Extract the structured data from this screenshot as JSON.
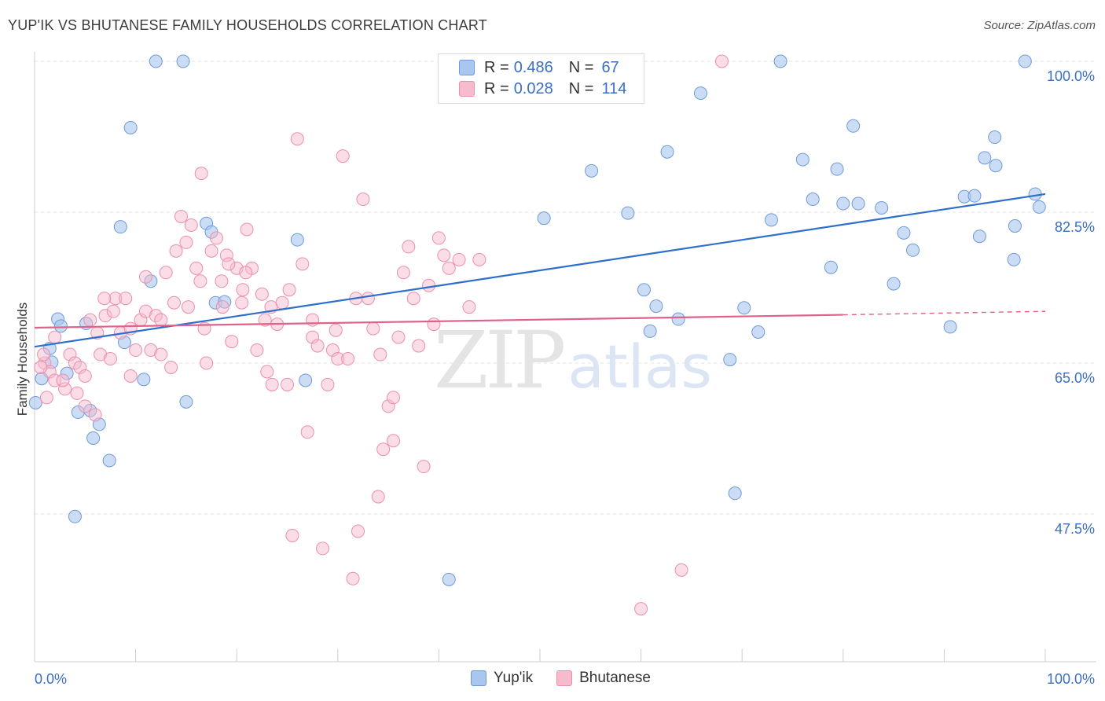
{
  "header": {
    "title": "YUP'IK VS BHUTANESE FAMILY HOUSEHOLDS CORRELATION CHART",
    "source": "Source: ZipAtlas.com"
  },
  "legend_top": {
    "rows": [
      {
        "r_label": "R =",
        "r_value": "0.486",
        "n_label": "N =",
        "n_value": "67"
      },
      {
        "r_label": "R =",
        "r_value": "0.028",
        "n_label": "N =",
        "n_value": "114"
      }
    ]
  },
  "legend_bottom": {
    "items": [
      "Yup'ik",
      "Bhutanese"
    ]
  },
  "watermark": {
    "zip": "ZIP",
    "atlas": "atlas"
  },
  "colors": {
    "blue_fill": "#a9c6ef",
    "blue_stroke": "#6f9ad8",
    "blue_line": "#2f6fcc",
    "pink_fill": "#f6bccd",
    "pink_stroke": "#ec8fab",
    "pink_line": "#e0628a",
    "tick_label": "#3a6fc4",
    "grid": "#e5e5e5",
    "axis": "#cccccc"
  },
  "chart_data": {
    "type": "scatter",
    "title": "YUP'IK VS BHUTANESE FAMILY HOUSEHOLDS CORRELATION CHART",
    "xlabel": "",
    "ylabel": "Family Households",
    "xlim": [
      0,
      100
    ],
    "ylim": [
      32,
      102
    ],
    "x_tick_labels": [
      "0.0%",
      "100.0%"
    ],
    "y_ticks": [
      47.5,
      65.0,
      82.5,
      100.0
    ],
    "y_tick_labels": [
      "47.5%",
      "65.0%",
      "82.5%",
      "100.0%"
    ],
    "series": [
      {
        "name": "Yup'ik",
        "R": 0.486,
        "N": 67,
        "trend": {
          "x0": 0,
          "y0": 66.9,
          "x1": 100,
          "y1": 84.6
        },
        "points": [
          [
            12,
            100
          ],
          [
            14.7,
            100
          ],
          [
            73.8,
            100
          ],
          [
            98,
            100
          ],
          [
            9.5,
            92.3
          ],
          [
            65.9,
            96.3
          ],
          [
            81,
            92.5
          ],
          [
            95,
            91.2
          ],
          [
            62.6,
            89.5
          ],
          [
            76,
            88.6
          ],
          [
            79.4,
            87.5
          ],
          [
            94,
            88.8
          ],
          [
            95.1,
            87.9
          ],
          [
            55.1,
            87.3
          ],
          [
            99,
            84.6
          ],
          [
            92,
            84.3
          ],
          [
            93,
            84.4
          ],
          [
            99.4,
            83.1
          ],
          [
            77,
            84
          ],
          [
            80,
            83.5
          ],
          [
            81.5,
            83.5
          ],
          [
            83.8,
            83
          ],
          [
            72.9,
            81.6
          ],
          [
            58.7,
            82.4
          ],
          [
            50.4,
            81.8
          ],
          [
            8.5,
            80.8
          ],
          [
            17,
            81.2
          ],
          [
            17.5,
            80.2
          ],
          [
            26,
            79.3
          ],
          [
            97,
            80.9
          ],
          [
            86,
            80.1
          ],
          [
            93.5,
            79.7
          ],
          [
            86.9,
            78.1
          ],
          [
            96.9,
            77
          ],
          [
            78.8,
            76.1
          ],
          [
            85,
            74.2
          ],
          [
            60.3,
            73.5
          ],
          [
            11.5,
            74.5
          ],
          [
            17.9,
            72
          ],
          [
            18.8,
            72.1
          ],
          [
            61.5,
            71.6
          ],
          [
            70.2,
            71.4
          ],
          [
            63.7,
            70.1
          ],
          [
            2.3,
            70.1
          ],
          [
            5.1,
            69.6
          ],
          [
            2.6,
            69.3
          ],
          [
            60.9,
            68.7
          ],
          [
            71.6,
            68.6
          ],
          [
            90.6,
            69.2
          ],
          [
            8.9,
            67.4
          ],
          [
            1.5,
            66.7
          ],
          [
            68.8,
            65.4
          ],
          [
            1.7,
            65.1
          ],
          [
            3.2,
            63.8
          ],
          [
            0.7,
            63.2
          ],
          [
            10.8,
            63.1
          ],
          [
            26.8,
            63
          ],
          [
            15,
            60.5
          ],
          [
            0.1,
            60.4
          ],
          [
            4.3,
            59.3
          ],
          [
            5.5,
            59.5
          ],
          [
            6.4,
            57.9
          ],
          [
            5.8,
            56.3
          ],
          [
            7.4,
            53.7
          ],
          [
            4,
            47.2
          ],
          [
            69.3,
            49.9
          ],
          [
            41,
            39.9
          ]
        ]
      },
      {
        "name": "Bhutanese",
        "R": 0.028,
        "N": 114,
        "trend": {
          "x0": 0,
          "y0": 69.1,
          "x1": 80,
          "y1": 70.6
        },
        "trend_dashed_to": {
          "x1": 100,
          "y1": 71
        }
      }
    ]
  }
}
